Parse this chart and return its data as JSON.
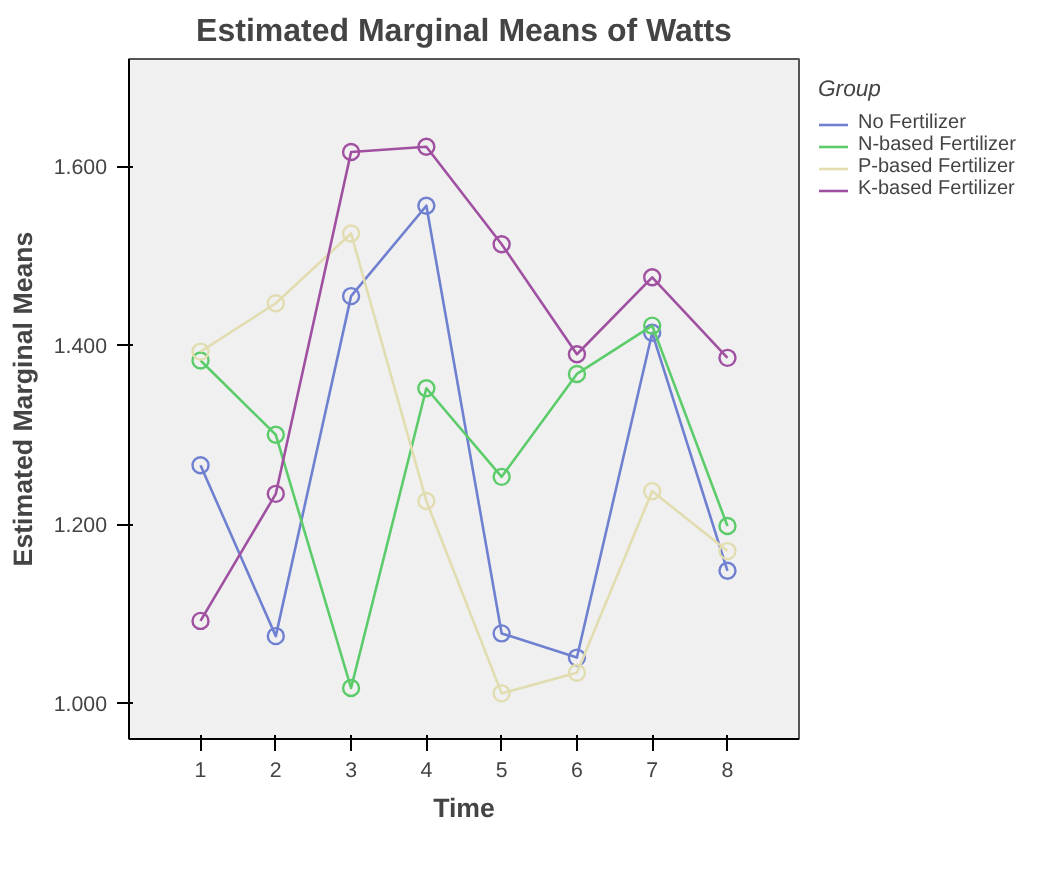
{
  "chart_data": {
    "type": "line",
    "title": "Estimated Marginal Means of Watts",
    "xlabel": "Time",
    "ylabel": "Estimated Marginal Means",
    "legend_title": "Group",
    "x": [
      1,
      2,
      3,
      4,
      5,
      6,
      7,
      8
    ],
    "series": [
      {
        "name": "No Fertilizer",
        "color": "#6f80d0",
        "values": [
          1.266,
          1.075,
          1.455,
          1.556,
          1.078,
          1.051,
          1.414,
          1.148
        ]
      },
      {
        "name": "N-based Fertilizer",
        "color": "#5ccc6a",
        "values": [
          1.383,
          1.3,
          1.017,
          1.352,
          1.253,
          1.368,
          1.422,
          1.198
        ]
      },
      {
        "name": "P-based Fertilizer",
        "color": "#e2ddb0",
        "values": [
          1.393,
          1.447,
          1.525,
          1.226,
          1.011,
          1.034,
          1.237,
          1.17
        ]
      },
      {
        "name": "K-based Fertilizer",
        "color": "#a050a0",
        "values": [
          1.092,
          1.234,
          1.616,
          1.622,
          1.513,
          1.39,
          1.476,
          1.386
        ]
      }
    ],
    "xlim": [
      0.05,
      8.95
    ],
    "xticks": [
      1,
      2,
      3,
      4,
      5,
      6,
      7,
      8
    ],
    "ylim": [
      0.96,
      1.72
    ],
    "yticks": [
      {
        "value": 1.0,
        "label": "1.000"
      },
      {
        "value": 1.2,
        "label": "1.200"
      },
      {
        "value": 1.4,
        "label": "1.400"
      },
      {
        "value": 1.6,
        "label": "1.600"
      }
    ],
    "grid": false,
    "legend": "right",
    "marker": "circle",
    "line_style": "solid"
  }
}
